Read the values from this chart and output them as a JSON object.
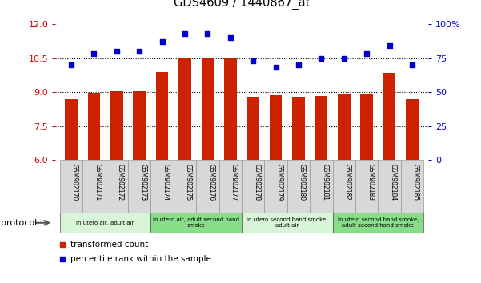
{
  "title": "GDS4609 / 1440867_at",
  "samples": [
    "GSM902170",
    "GSM902171",
    "GSM902172",
    "GSM902173",
    "GSM902174",
    "GSM902175",
    "GSM902176",
    "GSM902177",
    "GSM902178",
    "GSM902179",
    "GSM902180",
    "GSM902181",
    "GSM902182",
    "GSM902183",
    "GSM902184",
    "GSM902185"
  ],
  "bar_values": [
    8.7,
    8.95,
    9.05,
    9.05,
    9.9,
    10.48,
    10.47,
    10.48,
    8.78,
    8.85,
    8.78,
    8.82,
    8.92,
    8.9,
    9.85,
    8.7
  ],
  "dot_values": [
    70,
    78,
    80,
    80,
    87,
    93,
    93,
    90,
    73,
    68,
    70,
    75,
    75,
    78,
    84,
    70
  ],
  "ylim_left": [
    6,
    12
  ],
  "ylim_right": [
    0,
    100
  ],
  "yticks_left": [
    6,
    7.5,
    9,
    10.5,
    12
  ],
  "yticks_right": [
    0,
    25,
    50,
    75,
    100
  ],
  "bar_color": "#cc2200",
  "dot_color": "#0000cc",
  "bg_color": "#ffffff",
  "protocol_groups": [
    {
      "label": "in utero air, adult air",
      "start": 0,
      "end": 4,
      "color": "#d8f5d8"
    },
    {
      "label": "in utero air, adult second hand\nsmoke",
      "start": 4,
      "end": 8,
      "color": "#88dd88"
    },
    {
      "label": "in utero second hand smoke,\nadult air",
      "start": 8,
      "end": 12,
      "color": "#d8f5d8"
    },
    {
      "label": "in utero second hand smoke,\nadult second hand smoke",
      "start": 12,
      "end": 16,
      "color": "#88dd88"
    }
  ],
  "legend_items": [
    {
      "label": "transformed count",
      "color": "#cc2200"
    },
    {
      "label": "percentile rank within the sample",
      "color": "#0000cc"
    }
  ],
  "left_tick_color": "#cc0000",
  "right_tick_color": "#0000cc",
  "grid_yticks": [
    7.5,
    9,
    10.5
  ],
  "label_bg_color": "#d8d8d8",
  "label_edge_color": "#999999"
}
